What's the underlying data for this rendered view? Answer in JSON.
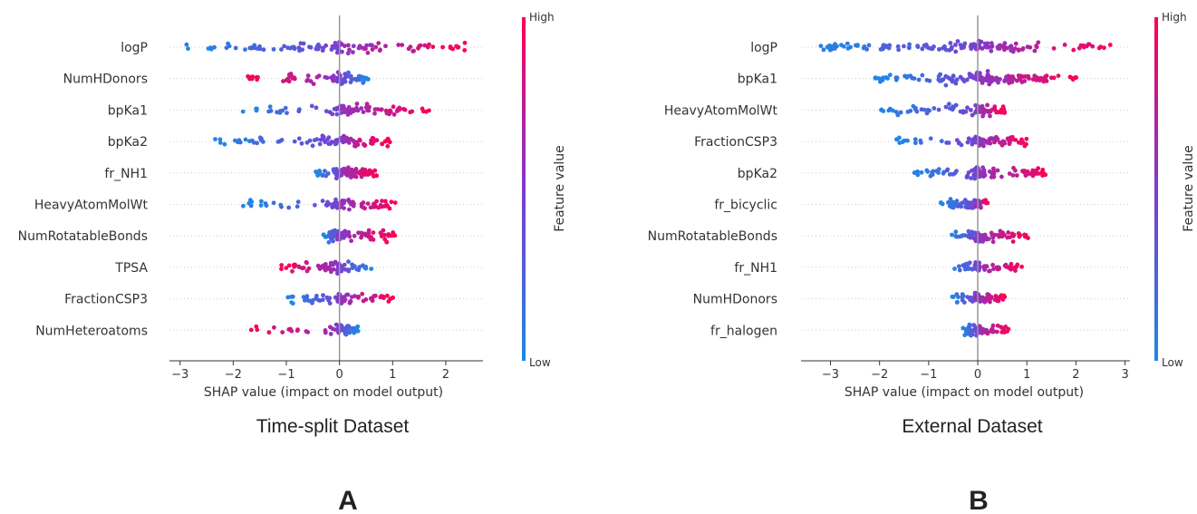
{
  "colorbar": {
    "high_label": "High",
    "low_label": "Low",
    "axis_label": "Feature value",
    "color_low": "#1e88e5",
    "color_mid": "#7e3bd0",
    "color_high": "#ff0052"
  },
  "chart_data": [
    {
      "type": "scatter",
      "subtype": "shap-beeswarm",
      "panel_label": "A",
      "title": "Time-split Dataset",
      "xlabel": "SHAP value (impact on model output)",
      "xlim": [
        -3.2,
        2.7
      ],
      "xticks": [
        -3,
        -2,
        -1,
        0,
        1,
        2
      ],
      "xtick_labels": [
        "−3",
        "−2",
        "−1",
        "0",
        "1",
        "2"
      ],
      "features": [
        {
          "name": "logP",
          "min": -2.9,
          "max": 2.45,
          "spread": 0.46,
          "low_cut": 0.0,
          "left_n": 55,
          "right_n": 50
        },
        {
          "name": "NumHDonors",
          "min": -1.85,
          "max": 0.55,
          "spread": 0.36,
          "low_cut": 0.0,
          "left_n": 38,
          "right_n": 32,
          "inverted": true
        },
        {
          "name": "bpKa1",
          "min": -1.9,
          "max": 1.7,
          "spread": 0.4,
          "low_cut": 0.0,
          "left_n": 26,
          "right_n": 60
        },
        {
          "name": "bpKa2",
          "min": -2.35,
          "max": 0.95,
          "spread": 0.42,
          "low_cut": 0.0,
          "left_n": 48,
          "right_n": 40
        },
        {
          "name": "fr_NH1",
          "min": -0.45,
          "max": 0.7,
          "spread": 0.3,
          "low_cut": 0.0,
          "left_n": 22,
          "right_n": 60
        },
        {
          "name": "HeavyAtomMolWt",
          "min": -1.85,
          "max": 1.05,
          "spread": 0.35,
          "low_cut": 0.0,
          "left_n": 32,
          "right_n": 45
        },
        {
          "name": "NumRotatableBonds",
          "min": -0.3,
          "max": 1.05,
          "spread": 0.34,
          "low_cut": 0.0,
          "left_n": 40,
          "right_n": 50
        },
        {
          "name": "TPSA",
          "min": -1.1,
          "max": 0.6,
          "spread": 0.38,
          "low_cut": 0.0,
          "left_n": 50,
          "right_n": 25,
          "inverted": true
        },
        {
          "name": "FractionCSP3",
          "min": -1.0,
          "max": 1.05,
          "spread": 0.28,
          "low_cut": 0.0,
          "left_n": 30,
          "right_n": 45
        },
        {
          "name": "NumHeteroatoms",
          "min": -1.75,
          "max": 0.35,
          "spread": 0.3,
          "low_cut": 0.0,
          "left_n": 24,
          "right_n": 40,
          "inverted": true
        }
      ]
    },
    {
      "type": "scatter",
      "subtype": "shap-beeswarm",
      "panel_label": "B",
      "title": "External Dataset",
      "xlabel": "SHAP value (impact on model output)",
      "xlim": [
        -3.6,
        3.1
      ],
      "xticks": [
        -3,
        -2,
        -1,
        0,
        1,
        2,
        3
      ],
      "xtick_labels": [
        "−3",
        "−2",
        "−1",
        "0",
        "1",
        "2",
        "3"
      ],
      "features": [
        {
          "name": "logP",
          "min": -3.35,
          "max": 2.8,
          "spread": 0.44,
          "low_cut": 0.0,
          "left_n": 80,
          "right_n": 60
        },
        {
          "name": "bpKa1",
          "min": -2.1,
          "max": 2.1,
          "spread": 0.42,
          "low_cut": 0.0,
          "left_n": 60,
          "right_n": 80
        },
        {
          "name": "HeavyAtomMolWt",
          "min": -2.0,
          "max": 0.55,
          "spread": 0.34,
          "low_cut": 0.0,
          "left_n": 45,
          "right_n": 40
        },
        {
          "name": "FractionCSP3",
          "min": -1.7,
          "max": 1.05,
          "spread": 0.4,
          "low_cut": 0.0,
          "left_n": 35,
          "right_n": 55
        },
        {
          "name": "bpKa2",
          "min": -1.35,
          "max": 1.5,
          "spread": 0.38,
          "low_cut": 0.0,
          "left_n": 45,
          "right_n": 55
        },
        {
          "name": "fr_bicyclic",
          "min": -0.75,
          "max": 0.2,
          "spread": 0.32,
          "low_cut": 0.0,
          "left_n": 50,
          "right_n": 20
        },
        {
          "name": "NumRotatableBonds",
          "min": -0.55,
          "max": 1.05,
          "spread": 0.32,
          "low_cut": 0.0,
          "left_n": 30,
          "right_n": 45
        },
        {
          "name": "fr_NH1",
          "min": -0.55,
          "max": 0.9,
          "spread": 0.28,
          "low_cut": 0.0,
          "left_n": 25,
          "right_n": 40
        },
        {
          "name": "NumHDonors",
          "min": -0.55,
          "max": 0.55,
          "spread": 0.3,
          "low_cut": 0.0,
          "left_n": 30,
          "right_n": 40
        },
        {
          "name": "fr_halogen",
          "min": -0.3,
          "max": 0.65,
          "spread": 0.26,
          "low_cut": 0.0,
          "left_n": 40,
          "right_n": 35
        }
      ]
    }
  ]
}
